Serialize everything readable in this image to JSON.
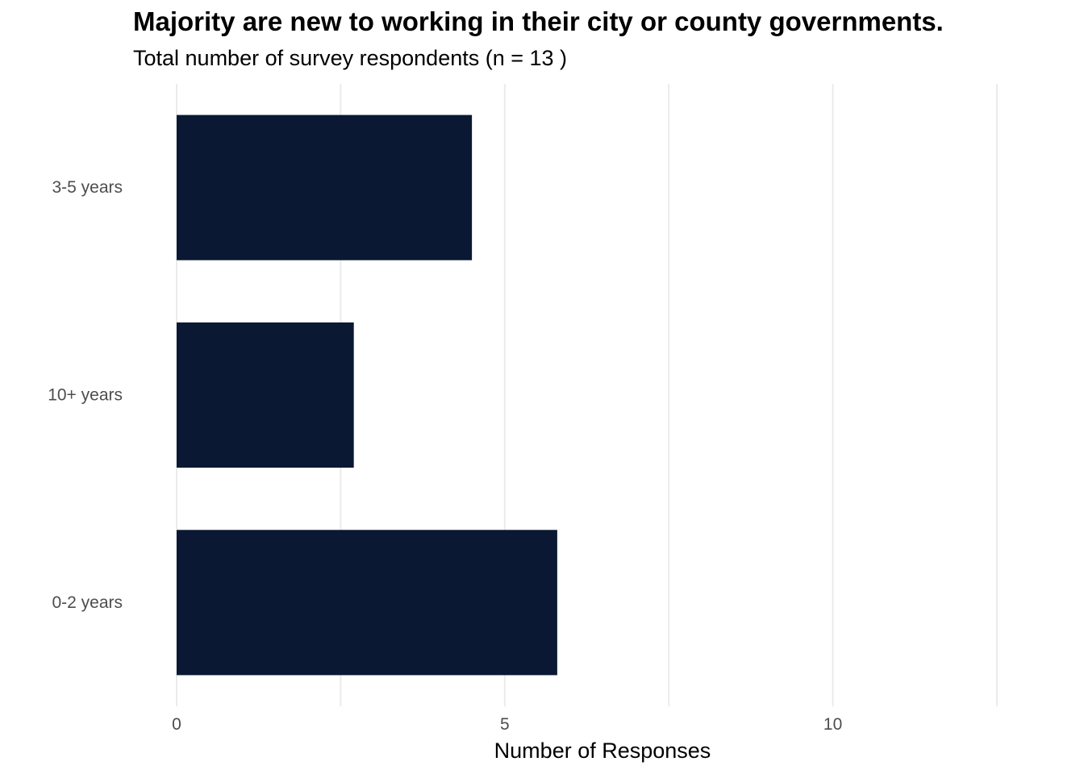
{
  "chart_data": {
    "type": "bar",
    "orientation": "horizontal",
    "title": "Majority are new to working in their city or county governments.",
    "subtitle": "Total number of survey respondents (n = 13 )",
    "xlabel": "Number of Responses",
    "ylabel": "",
    "categories": [
      "3-5 years",
      "10+ years",
      "0-2 years"
    ],
    "values": [
      4.5,
      2.7,
      5.8
    ],
    "xlim": [
      0,
      12.5
    ],
    "x_ticks": [
      0,
      5,
      10
    ],
    "x_minor_ticks": [
      2.5,
      7.5,
      12.5
    ],
    "grid": true,
    "legend": "none",
    "bar_color": "#0a1833",
    "grid_color": "#ebebeb"
  }
}
